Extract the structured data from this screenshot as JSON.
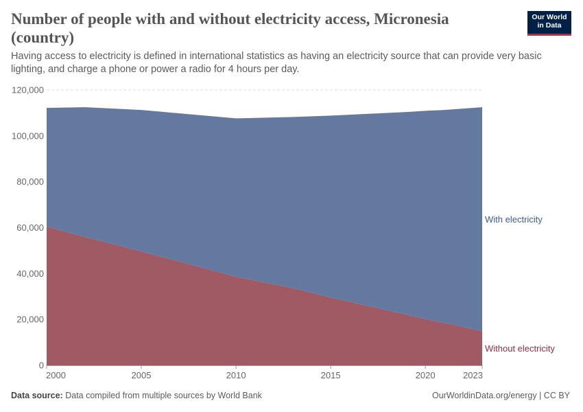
{
  "header": {
    "title": "Number of people with and without electricity access, Micronesia (country)",
    "subtitle": "Having access to electricity is defined in international statistics as having an electricity source that can provide very basic lighting, and charge a phone or power a radio for 4 hours per day.",
    "logo_line1": "Our World",
    "logo_line2": "in Data"
  },
  "footer": {
    "source_label": "Data source:",
    "source_text": "Data compiled from multiple sources by World Bank",
    "right_text": "OurWorldinData.org/energy | CC BY"
  },
  "colors": {
    "with_electricity": "#6379a0",
    "without_electricity": "#a05a64",
    "label_with": "#3d5a8f",
    "label_without": "#9b2b3e",
    "grid": "#dddddd",
    "tick_text": "#666666"
  },
  "chart_data": {
    "type": "area",
    "stacked": true,
    "title": "Number of people with and without electricity access, Micronesia (country)",
    "x": [
      2000,
      2002,
      2005,
      2010,
      2013,
      2015,
      2019,
      2020,
      2021,
      2022,
      2023
    ],
    "series": [
      {
        "name": "Without electricity",
        "values": [
          60500,
          56000,
          49700,
          38600,
          33700,
          29600,
          22100,
          20200,
          18500,
          16800,
          14800
        ]
      },
      {
        "name": "With electricity",
        "values": [
          51700,
          56500,
          61600,
          69000,
          74500,
          79200,
          88300,
          90700,
          92800,
          95100,
          97700
        ]
      }
    ],
    "xlim": [
      2000,
      2023
    ],
    "ylim": [
      0,
      120000
    ],
    "yticks": [
      0,
      20000,
      40000,
      60000,
      80000,
      100000,
      120000
    ],
    "ytick_labels": [
      "0",
      "20,000",
      "40,000",
      "60,000",
      "80,000",
      "100,000",
      "120,000"
    ],
    "xticks": [
      2000,
      2005,
      2010,
      2015,
      2020,
      2023
    ],
    "xtick_labels": [
      "2000",
      "2005",
      "2010",
      "2015",
      "2020",
      "2023"
    ],
    "series_labels": [
      "With electricity",
      "Without electricity"
    ],
    "grid": true,
    "legend": "inline-right"
  }
}
